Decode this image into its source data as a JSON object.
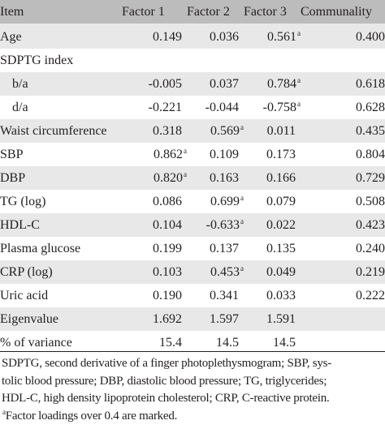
{
  "table": {
    "headers": [
      "Item",
      "Factor 1",
      "Factor 2",
      "Factor 3",
      "Communality"
    ],
    "rows": [
      {
        "label": "Age",
        "cells": [
          {
            "v": "0.149",
            "m": ""
          },
          {
            "v": "0.036",
            "m": ""
          },
          {
            "v": "0.561",
            "m": "a"
          },
          {
            "v": "0.400",
            "m": ""
          }
        ]
      },
      {
        "label": "SDPTG index",
        "cells": [
          {
            "v": "",
            "m": ""
          },
          {
            "v": "",
            "m": ""
          },
          {
            "v": "",
            "m": ""
          },
          {
            "v": "",
            "m": ""
          }
        ]
      },
      {
        "label": "b/a",
        "indent": true,
        "cells": [
          {
            "v": "-0.005",
            "m": ""
          },
          {
            "v": "0.037",
            "m": ""
          },
          {
            "v": "0.784",
            "m": "a"
          },
          {
            "v": "0.618",
            "m": ""
          }
        ]
      },
      {
        "label": "d/a",
        "indent": true,
        "cells": [
          {
            "v": "-0.221",
            "m": ""
          },
          {
            "v": "-0.044",
            "m": ""
          },
          {
            "v": "-0.758",
            "m": "a"
          },
          {
            "v": "0.628",
            "m": ""
          }
        ]
      },
      {
        "label": "Waist circumference",
        "cells": [
          {
            "v": "0.318",
            "m": ""
          },
          {
            "v": "0.569",
            "m": "a"
          },
          {
            "v": "0.011",
            "m": ""
          },
          {
            "v": "0.435",
            "m": ""
          }
        ]
      },
      {
        "label": "SBP",
        "cells": [
          {
            "v": "0.862",
            "m": "a"
          },
          {
            "v": "0.109",
            "m": ""
          },
          {
            "v": "0.173",
            "m": ""
          },
          {
            "v": "0.804",
            "m": ""
          }
        ]
      },
      {
        "label": "DBP",
        "cells": [
          {
            "v": "0.820",
            "m": "a"
          },
          {
            "v": "0.163",
            "m": ""
          },
          {
            "v": "0.166",
            "m": ""
          },
          {
            "v": "0.729",
            "m": ""
          }
        ]
      },
      {
        "label": "TG (log)",
        "cells": [
          {
            "v": "0.086",
            "m": ""
          },
          {
            "v": "0.699",
            "m": "a"
          },
          {
            "v": "0.079",
            "m": ""
          },
          {
            "v": "0.508",
            "m": ""
          }
        ]
      },
      {
        "label": "HDL-C",
        "cells": [
          {
            "v": "0.104",
            "m": ""
          },
          {
            "v": "-0.633",
            "m": "a"
          },
          {
            "v": "0.022",
            "m": ""
          },
          {
            "v": "0.423",
            "m": ""
          }
        ]
      },
      {
        "label": "Plasma glucose",
        "cells": [
          {
            "v": "0.199",
            "m": ""
          },
          {
            "v": "0.137",
            "m": ""
          },
          {
            "v": "0.135",
            "m": ""
          },
          {
            "v": "0.240",
            "m": ""
          }
        ]
      },
      {
        "label": "CRP (log)",
        "cells": [
          {
            "v": "0.103",
            "m": ""
          },
          {
            "v": "0.453",
            "m": "a"
          },
          {
            "v": "0.049",
            "m": ""
          },
          {
            "v": "0.219",
            "m": ""
          }
        ]
      },
      {
        "label": "Uric acid",
        "cells": [
          {
            "v": "0.190",
            "m": ""
          },
          {
            "v": "0.341",
            "m": ""
          },
          {
            "v": "0.033",
            "m": ""
          },
          {
            "v": "0.222",
            "m": ""
          }
        ]
      },
      {
        "label": "Eigenvalue",
        "cells": [
          {
            "v": "1.692",
            "m": ""
          },
          {
            "v": "1.597",
            "m": ""
          },
          {
            "v": "1.591",
            "m": ""
          },
          {
            "v": "",
            "m": ""
          }
        ]
      },
      {
        "label": "% of variance",
        "cells": [
          {
            "v": "15.4",
            "m": ""
          },
          {
            "v": "14.5",
            "m": ""
          },
          {
            "v": "14.5",
            "m": ""
          },
          {
            "v": "",
            "m": ""
          }
        ]
      }
    ]
  },
  "footnote": {
    "lines": [
      "SDPTG, second derivative of a finger photoplethysmogram; SBP, sys-",
      "tolic blood pressure; DBP, diastolic blood pressure; TG, triglycerides;",
      "HDL-C, high density lipoprotein cholesterol; CRP, C-reactive protein."
    ],
    "marker": "a",
    "note": "Factor loadings over 0.4 are marked."
  },
  "colors": {
    "header_bg": "#bdbcbc",
    "stripe_bg": "#e8e8e8",
    "text": "#231f20"
  }
}
